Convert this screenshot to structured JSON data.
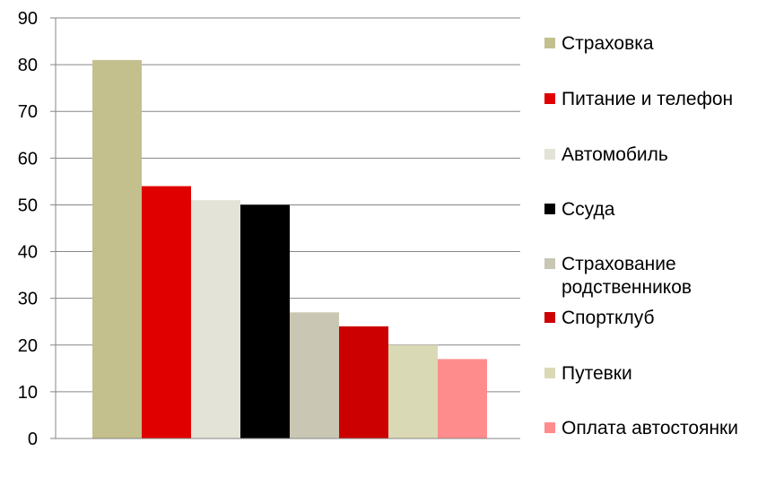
{
  "chart_data": {
    "type": "bar",
    "title": "",
    "xlabel": "",
    "ylabel": "",
    "ylim": [
      0,
      90
    ],
    "yticks": [
      "0",
      "10",
      "20",
      "30",
      "40",
      "50",
      "60",
      "70",
      "80",
      "90"
    ],
    "grid": true,
    "legend_position": "right",
    "series": [
      {
        "name": "Страховка",
        "value": 81,
        "color": "#c3c08e"
      },
      {
        "name": "Питание и телефон",
        "value": 54,
        "color": "#e00000"
      },
      {
        "name": "Автомобиль",
        "value": 51,
        "color": "#e3e3d7"
      },
      {
        "name": "Ссуда",
        "value": 50,
        "color": "#000000"
      },
      {
        "name": "Страхование родственников",
        "value": 27,
        "color": "#c9c7b3"
      },
      {
        "name": "Спортклуб",
        "value": 24,
        "color": "#cc0000"
      },
      {
        "name": "Путевки",
        "value": 20,
        "color": "#dad9b5"
      },
      {
        "name": "Оплата автостоянки",
        "value": 17,
        "color": "#ff8c8c"
      }
    ]
  }
}
